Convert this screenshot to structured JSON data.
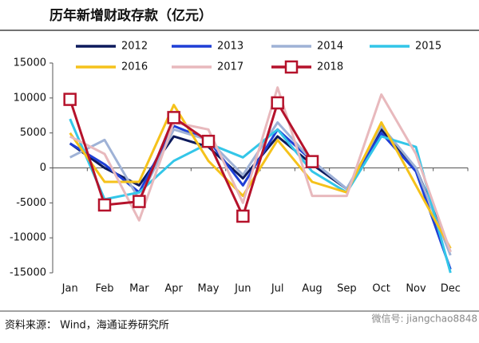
{
  "chart_data": {
    "type": "line",
    "title": "历年新增财政存款（亿元）",
    "source": "资料来源：  Wind，海通证券研究所",
    "watermark": "微信号: jiangchao8848",
    "categories": [
      "Jan",
      "Feb",
      "Mar",
      "Apr",
      "May",
      "Jun",
      "Jul",
      "Aug",
      "Sep",
      "Oct",
      "Nov",
      "Dec"
    ],
    "ylim": [
      -15000,
      15000
    ],
    "yticks": [
      -15000,
      -10000,
      -5000,
      0,
      5000,
      10000,
      15000
    ],
    "legend": "top",
    "series": [
      {
        "name": "2012",
        "color": "#0d1a5c",
        "values": [
          3500,
          0,
          -2500,
          4500,
          3000,
          -1500,
          4500,
          500,
          -3000,
          5500,
          0,
          -12000
        ]
      },
      {
        "name": "2013",
        "color": "#1f3fd6",
        "values": [
          3500,
          500,
          -3500,
          6000,
          4000,
          -2500,
          5500,
          1000,
          -3000,
          5000,
          -500,
          -14500
        ]
      },
      {
        "name": "2014",
        "color": "#9fb2d6",
        "values": [
          1500,
          4000,
          -4500,
          5500,
          4000,
          -1000,
          6500,
          1000,
          -3000,
          6000,
          0,
          -12500
        ]
      },
      {
        "name": "2015",
        "color": "#33c6e8",
        "values": [
          7000,
          -4500,
          -3500,
          1000,
          3500,
          1500,
          5500,
          -500,
          -3500,
          4500,
          3000,
          -15000
        ]
      },
      {
        "name": "2016",
        "color": "#f5c21b",
        "values": [
          5000,
          -2000,
          -2000,
          9000,
          1000,
          -4000,
          4000,
          -2000,
          -3500,
          6500,
          -2500,
          -11500
        ]
      },
      {
        "name": "2017",
        "color": "#e8b9bd",
        "values": [
          4500,
          2000,
          -7500,
          6500,
          5500,
          -5000,
          11500,
          -4000,
          -4000,
          10500,
          2000,
          -12000
        ]
      },
      {
        "name": "2018",
        "color": "#b5122b",
        "marker": "square",
        "values": [
          9800,
          -5300,
          -4800,
          7200,
          3800,
          -6900,
          9300,
          900,
          null,
          null,
          null,
          null
        ]
      }
    ]
  }
}
